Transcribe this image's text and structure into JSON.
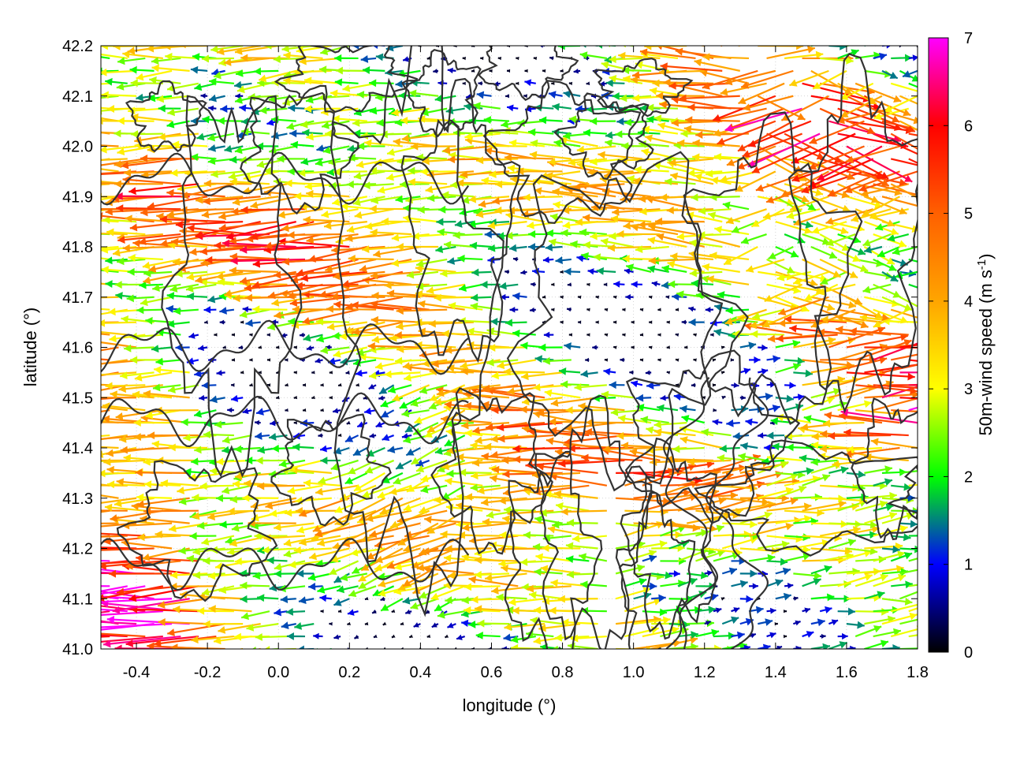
{
  "chart_data": {
    "type": "quiver",
    "title": "",
    "xlabel": "longitude (°)",
    "ylabel": "latitude (°)",
    "colorbar_label": "50m-wind speed (m s",
    "colorbar_label_sup": "-1",
    "colorbar_label_end": ")",
    "xlim": [
      -0.5,
      1.8
    ],
    "ylim": [
      41.0,
      42.2
    ],
    "clim": [
      0,
      7
    ],
    "x_ticks": [
      -0.4,
      -0.2,
      0.0,
      0.2,
      0.4,
      0.6,
      0.8,
      1.0,
      1.2,
      1.4,
      1.6,
      1.8
    ],
    "x_tick_labels": [
      "-0.4",
      "-0.2",
      "0.0",
      "0.2",
      "0.4",
      "0.6",
      "0.8",
      "1.0",
      "1.2",
      "1.4",
      "1.6",
      "1.8"
    ],
    "y_ticks": [
      41.0,
      41.1,
      41.2,
      41.3,
      41.4,
      41.5,
      41.6,
      41.7,
      41.8,
      41.9,
      42.0,
      42.1,
      42.2
    ],
    "y_tick_labels": [
      "41.0",
      "41.1",
      "41.2",
      "41.3",
      "41.4",
      "41.5",
      "41.6",
      "41.7",
      "41.8",
      "41.9",
      "42.0",
      "42.1",
      "42.2"
    ],
    "c_ticks": [
      0,
      1,
      2,
      3,
      4,
      5,
      6,
      7
    ],
    "c_tick_labels": [
      "0",
      "1",
      "2",
      "3",
      "4",
      "5",
      "6",
      "7"
    ],
    "colormap_stops": [
      {
        "value": 0,
        "color": "#000000"
      },
      {
        "value": 1,
        "color": "#0000ff"
      },
      {
        "value": 1.5,
        "color": "#008080"
      },
      {
        "value": 2,
        "color": "#00ff00"
      },
      {
        "value": 3,
        "color": "#ffff00"
      },
      {
        "value": 4,
        "color": "#ffa500"
      },
      {
        "value": 5,
        "color": "#ff6000"
      },
      {
        "value": 6,
        "color": "#ff0000"
      },
      {
        "value": 7,
        "color": "#ff00ff"
      }
    ],
    "grid": true,
    "wind_field": {
      "x_start": -0.5,
      "x_step": 0.05,
      "y_start": 41.0,
      "y_step": 0.025,
      "nx": 47,
      "ny": 49,
      "dominant_direction": "westward in the west, eastward in the south-east",
      "speed_range": [
        0,
        7
      ]
    },
    "contour_color": "#333333"
  }
}
